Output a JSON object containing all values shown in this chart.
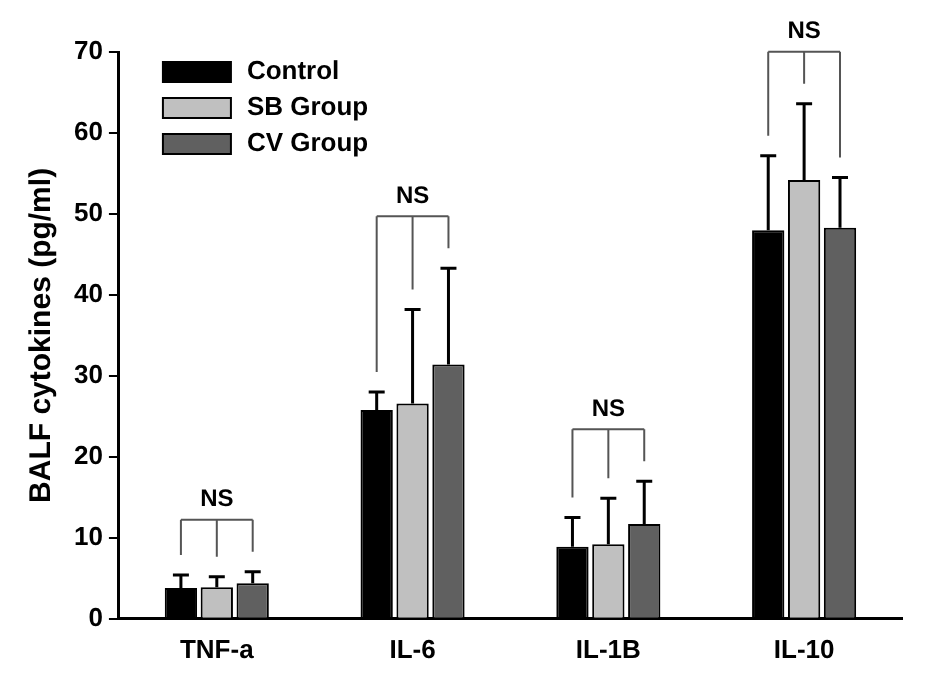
{
  "chart_data": {
    "type": "bar",
    "ylabel": "BALF cytokines (pg/ml)",
    "categories": [
      "TNF-a",
      "IL-6",
      "IL-1B",
      "IL-10"
    ],
    "series": [
      {
        "name": "Control",
        "color": "#000000",
        "values": [
          3.8,
          25.8,
          8.9,
          48.0
        ],
        "errors": [
          [
            3.8,
            5.4
          ],
          [
            25.8,
            28.0
          ],
          [
            8.9,
            12.5
          ],
          [
            48.0,
            57.2
          ]
        ]
      },
      {
        "name": "SB Group",
        "color": "#c0c0c0",
        "values": [
          3.9,
          26.6,
          9.2,
          54.2
        ],
        "errors": [
          [
            3.9,
            5.2
          ],
          [
            26.6,
            38.2
          ],
          [
            9.2,
            14.9
          ],
          [
            54.2,
            63.6
          ]
        ]
      },
      {
        "name": "CV Group",
        "color": "#606060",
        "values": [
          4.4,
          31.4,
          11.7,
          48.3
        ],
        "errors": [
          [
            4.4,
            5.8
          ],
          [
            31.4,
            43.3
          ],
          [
            11.7,
            17.0
          ],
          [
            48.3,
            54.5
          ]
        ]
      }
    ],
    "ylim": [
      0,
      70
    ],
    "yticks": [
      0,
      10,
      20,
      30,
      40,
      50,
      60,
      70
    ],
    "grid": false,
    "legend": "top left",
    "annotations": [
      "NS",
      "NS",
      "NS",
      "NS"
    ]
  }
}
